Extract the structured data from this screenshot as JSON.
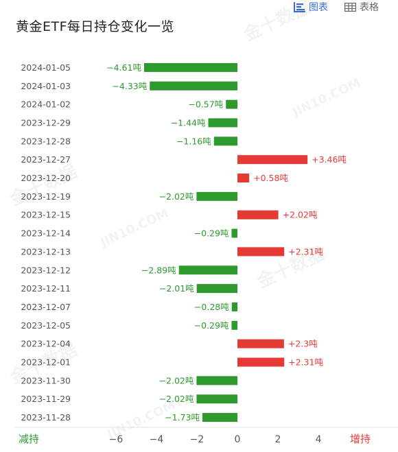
{
  "header": {
    "title": "黄金ETF每日持仓变化一览",
    "tab_chart": "图表",
    "tab_table": "表格"
  },
  "colors": {
    "increase": "#e53935",
    "decrease": "#2e9a2e",
    "increase_label": "#e53935",
    "decrease_label": "#2e9a2e",
    "active_tab": "#3a6fd8"
  },
  "footer": {
    "left_label": "减持",
    "right_label": "增持"
  },
  "chart_data": {
    "type": "bar",
    "orientation": "horizontal",
    "unit": "吨",
    "categories": [
      "2024-01-05",
      "2024-01-03",
      "2024-01-02",
      "2023-12-29",
      "2023-12-28",
      "2023-12-27",
      "2023-12-20",
      "2023-12-19",
      "2023-12-15",
      "2023-12-14",
      "2023-12-13",
      "2023-12-12",
      "2023-12-11",
      "2023-12-07",
      "2023-12-05",
      "2023-12-04",
      "2023-12-01",
      "2023-11-30",
      "2023-11-29",
      "2023-11-28"
    ],
    "values": [
      -4.61,
      -4.33,
      -0.57,
      -1.44,
      -1.16,
      3.46,
      0.58,
      -2.02,
      2.02,
      -0.29,
      2.31,
      -2.89,
      -2.01,
      -0.28,
      -0.29,
      2.3,
      2.31,
      -2.02,
      -2.02,
      -1.73
    ],
    "labels": [
      "-4.61吨",
      "-4.33吨",
      "-0.57吨",
      "-1.44吨",
      "-1.16吨",
      "+3.46吨",
      "+0.58吨",
      "-2.02吨",
      "+2.02吨",
      "-0.29吨",
      "+2.31吨",
      "-2.89吨",
      "-2.01吨",
      "-0.28吨",
      "-0.29吨",
      "+2.3吨",
      "+2.31吨",
      "-2.02吨",
      "-2.02吨",
      "-1.73吨"
    ],
    "xticks": [
      -6,
      -4,
      -2,
      0,
      2,
      4
    ],
    "xtick_labels": [
      "−6",
      "−4",
      "−2",
      "0",
      "2",
      "4"
    ],
    "xlim": [
      -6.88,
      7.93
    ],
    "grid": false
  }
}
